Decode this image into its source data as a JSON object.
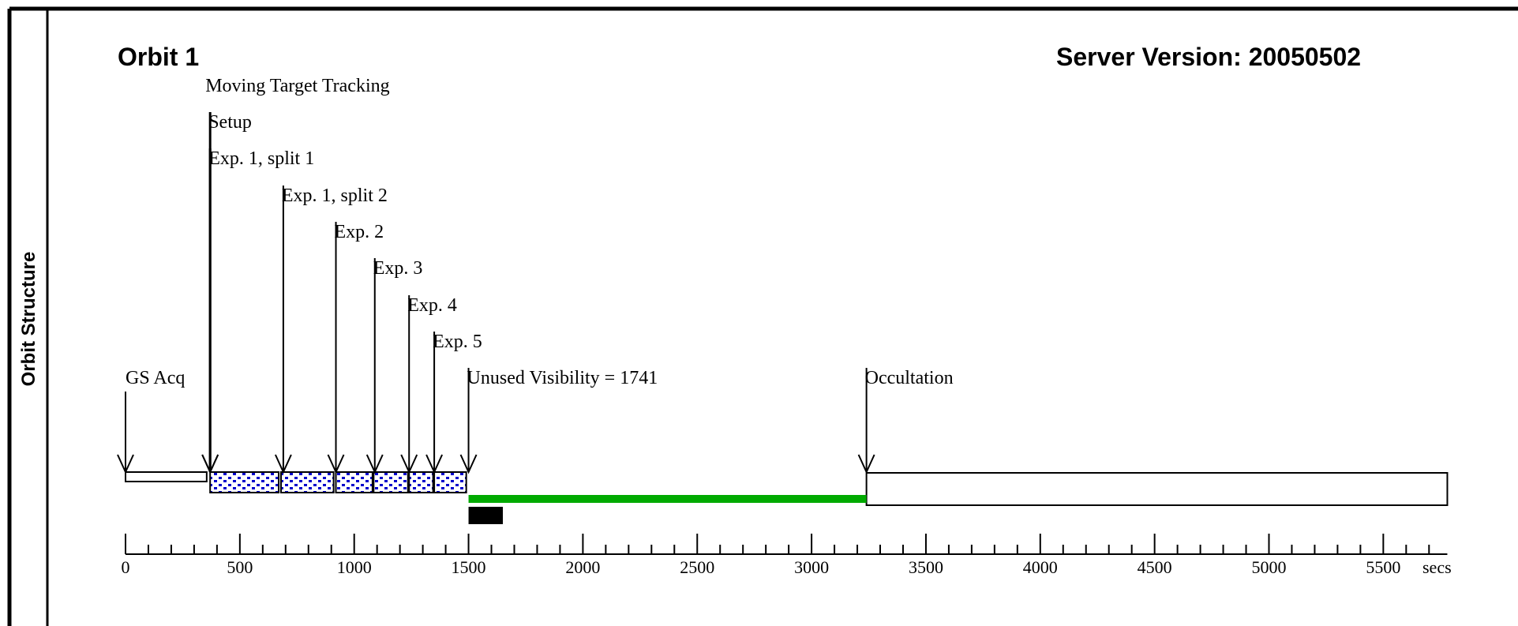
{
  "sidebar": {
    "title": "Orbit Structure"
  },
  "header": {
    "orbit_title": "Orbit 1",
    "server_version": "Server Version: 20050502"
  },
  "unit_label": "secs",
  "axis": {
    "min": 0,
    "max": 5800,
    "major_ticks": [
      0,
      500,
      1000,
      1500,
      2000,
      2500,
      3000,
      3500,
      4000,
      4500,
      5000,
      5500
    ],
    "tick_labels": [
      "0",
      "500",
      "1000",
      "1500",
      "2000",
      "2500",
      "3000",
      "3500",
      "4000",
      "4500",
      "5000",
      "5500"
    ]
  },
  "events": [
    {
      "label": "GS Acq",
      "time": 0
    },
    {
      "label": "Moving Target Tracking",
      "time": 370
    },
    {
      "label": "Setup",
      "time": 370
    },
    {
      "label": "Exp. 1, split 1",
      "time": 370
    },
    {
      "label": "Exp. 1, split 2",
      "time": 690
    },
    {
      "label": "Exp. 2",
      "time": 920
    },
    {
      "label": "Exp. 3",
      "time": 1090
    },
    {
      "label": "Exp. 4",
      "time": 1240
    },
    {
      "label": "Exp. 5",
      "time": 1350
    },
    {
      "label": "Unused Visibility = 1741",
      "time": 1500
    },
    {
      "label": "Occultation",
      "time": 3240
    }
  ],
  "blocks": [
    {
      "name": "gs-acquisition-block",
      "start": 0,
      "end": 355,
      "style": "white"
    },
    {
      "name": "exposure-block",
      "start": 370,
      "end": 670,
      "style": "dotted"
    },
    {
      "name": "exposure-block",
      "start": 680,
      "end": 910,
      "style": "dotted"
    },
    {
      "name": "exposure-block",
      "start": 920,
      "end": 1080,
      "style": "dotted"
    },
    {
      "name": "exposure-block",
      "start": 1085,
      "end": 1235,
      "style": "dotted"
    },
    {
      "name": "exposure-block",
      "start": 1240,
      "end": 1345,
      "style": "dotted"
    },
    {
      "name": "exposure-block",
      "start": 1350,
      "end": 1490,
      "style": "dotted"
    },
    {
      "name": "occultation-block",
      "start": 3240,
      "end": 5780,
      "style": "white"
    }
  ],
  "unused_visibility": {
    "start": 1500,
    "end": 3240
  },
  "overhead_marker": {
    "start": 1500,
    "end": 1650
  },
  "colors": {
    "dot_fill": "#0000cc",
    "unused_visibility": "#00aa00",
    "border": "#000000"
  }
}
